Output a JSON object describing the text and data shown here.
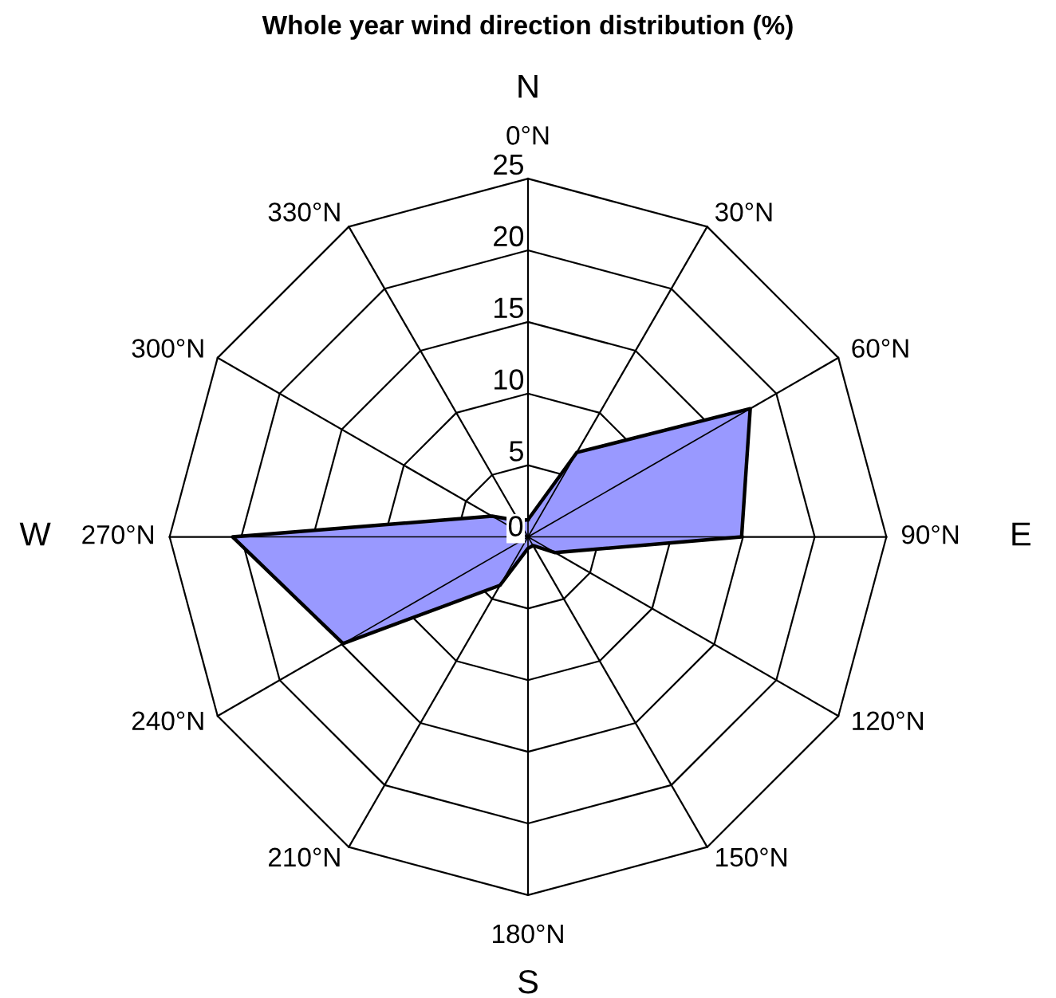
{
  "chart_data": {
    "type": "radar",
    "title": "Whole year wind direction distribution (%)",
    "categories": [
      "0°N",
      "30°N",
      "60°N",
      "90°N",
      "120°N",
      "150°N",
      "180°N",
      "210°N",
      "240°N",
      "270°N",
      "300°N",
      "330°N"
    ],
    "series": [
      {
        "color": "#9999ff",
        "values": [
          1.2,
          6.8,
          17.9,
          14.9,
          2.2,
          0.7,
          0.8,
          3.9,
          14.9,
          20.6,
          2.9,
          1.3
        ]
      }
    ],
    "ylim": [
      0,
      25
    ],
    "yticks": [
      0,
      5,
      10,
      15,
      20,
      25
    ],
    "annotations": [
      "N",
      "E",
      "S",
      "W"
    ],
    "legend": false
  }
}
